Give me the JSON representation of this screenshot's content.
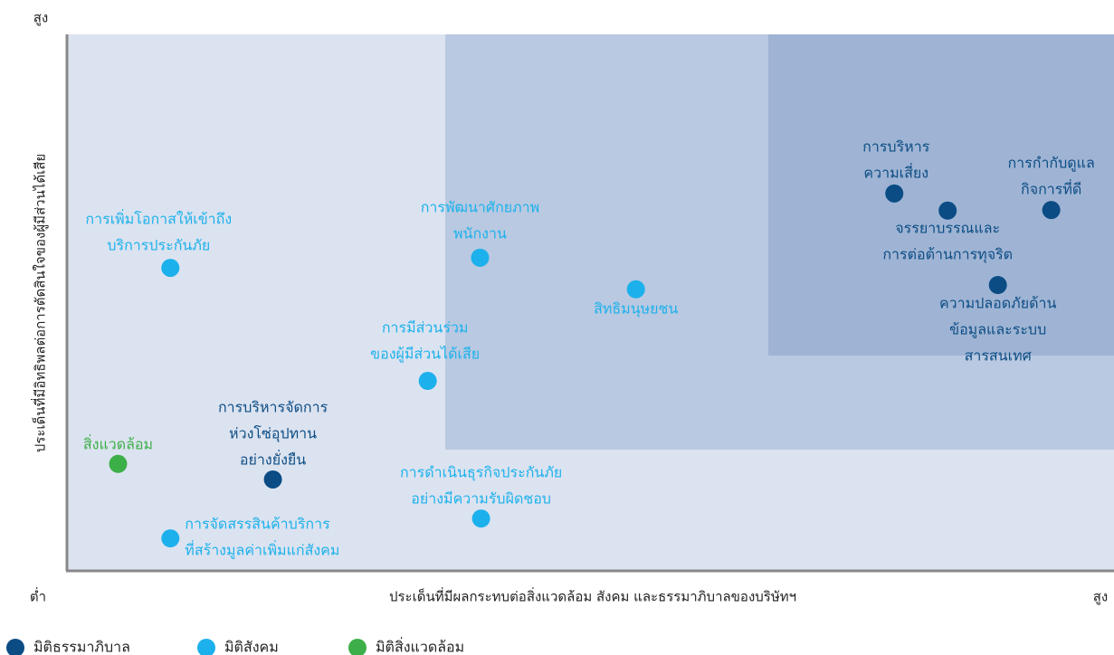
{
  "chart_data": {
    "type": "scatter",
    "y_axis_label": "ประเด็นที่มีอิทธิพลต่อการตัดสินใจของผู้มีส่วนได้เสีย",
    "x_axis_label": "ประเด็นที่มีผลกระทบต่อสิ่งแวดล้อม สังคม และธรรมาภิบาลของบริษัทฯ",
    "y_high": "สูง",
    "x_low": "ต่ำ",
    "x_high": "สูง",
    "xlim": [
      0,
      10
    ],
    "ylim": [
      0,
      10
    ],
    "series": [
      {
        "name": "มิติธรรมาภิบาล",
        "color": "#0b4c84",
        "x": [
          7.9,
          8.41,
          9.4,
          8.89,
          1.96
        ],
        "values": [
          7.03,
          6.71,
          6.72,
          5.32,
          1.69
        ],
        "labels": [
          [
            "การบริหาร",
            "ความเสี่ยง"
          ],
          [
            "จรรยาบรรณและ",
            "การต่อต้านการทุจริต"
          ],
          [
            "การกำกับดูแล",
            "กิจการที่ดี"
          ],
          [
            "ความปลอดภัยด้าน",
            "ข้อมูลและระบบ",
            "สารสนเทศ"
          ],
          [
            "การบริหารจัดการ",
            "ห่วงโซ่อุปทาน",
            "อย่างยั่งยืน"
          ]
        ]
      },
      {
        "name": "มิติสังคม",
        "color": "#1cb1ec",
        "x": [
          0.98,
          3.94,
          5.43,
          3.44,
          3.95,
          0.98
        ],
        "values": [
          5.64,
          5.83,
          5.24,
          3.53,
          0.96,
          0.59
        ],
        "labels": [
          [
            "การเพิ่มโอกาสให้เข้าถึง",
            "บริการประกันภัย"
          ],
          [
            "การพัฒนาศักยภาพ",
            "พนักงาน"
          ],
          [
            "สิทธิมนุษยชน"
          ],
          [
            "การมีส่วนร่วม",
            "ของผู้มีส่วนได้เสีย"
          ],
          [
            "การดำเนินธุรกิจประกันภัย",
            "อย่างมีความรับผิดชอบ"
          ],
          [
            "การจัดสรรสินค้าบริการ",
            "ที่สร้างมูลค่าเพิ่มแก่สังคม"
          ]
        ]
      },
      {
        "name": "มิติสิ่งแวดล้อม",
        "color": "#3daf49",
        "x": [
          0.48
        ],
        "values": [
          1.98
        ],
        "labels": [
          [
            "สิ่งแวดล้อม"
          ]
        ]
      }
    ]
  }
}
